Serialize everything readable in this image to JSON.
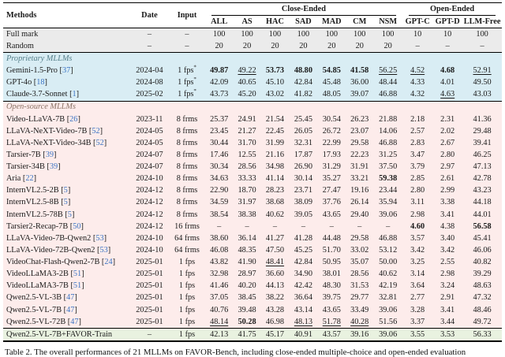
{
  "table": {
    "header": {
      "methods": "Methods",
      "date": "Date",
      "input": "Input",
      "close_group": "Close-Ended",
      "open_group": "Open-Ended",
      "close_cols": [
        "ALL",
        "AS",
        "HAC",
        "SAD",
        "MAD",
        "CM",
        "NSM"
      ],
      "open_cols": [
        "GPT-C",
        "GPT-D",
        "LLM-Free"
      ]
    },
    "emphasis_legend": {
      "b_prefix": "bold (best)",
      "u_prefix": "underline (second best)"
    },
    "groups": [
      {
        "kind": "plain",
        "label": null,
        "rows": [
          {
            "method": "Full mark",
            "cite": null,
            "date": "–",
            "input": "–",
            "values": [
              "100",
              "100",
              "100",
              "100",
              "100",
              "100",
              "100",
              "10",
              "10",
              "100"
            ]
          },
          {
            "method": "Random",
            "cite": null,
            "date": "–",
            "input": "–",
            "values": [
              "20",
              "20",
              "20",
              "20",
              "20",
              "20",
              "20",
              "–",
              "–",
              "–"
            ]
          }
        ]
      },
      {
        "kind": "proprietary",
        "label": "Proprietary MLLMs",
        "rows": [
          {
            "method": "Gemini-1.5-Pro",
            "cite": "37",
            "date": "2024-04",
            "input": "1 fps*",
            "values": [
              "b49.87",
              "u49.22",
              "b53.73",
              "b48.80",
              "b54.85",
              "b41.58",
              "u56.25",
              "u4.52",
              "b4.68",
              "u52.91"
            ]
          },
          {
            "method": "GPT-4o",
            "cite": "18",
            "date": "2024-08",
            "input": "1 fps*",
            "values": [
              "42.09",
              "40.65",
              "45.10",
              "42.84",
              "45.48",
              "36.00",
              "48.44",
              "4.33",
              "4.01",
              "49.50"
            ]
          },
          {
            "method": "Claude-3.7-Sonnet",
            "cite": "1",
            "date": "2025-02",
            "input": "1 fps*",
            "values": [
              "43.73",
              "45.20",
              "43.02",
              "41.82",
              "48.05",
              "39.07",
              "46.88",
              "4.32",
              "u4.63",
              "43.03"
            ]
          }
        ]
      },
      {
        "kind": "open",
        "label": "Open-source MLLMs",
        "rows": [
          {
            "method": "Video-LLaVA-7B",
            "cite": "26",
            "date": "2023-11",
            "input": "8 frms",
            "values": [
              "25.37",
              "24.91",
              "21.54",
              "25.45",
              "30.54",
              "26.23",
              "21.88",
              "2.18",
              "2.31",
              "41.36"
            ]
          },
          {
            "method": "LLaVA-NeXT-Video-7B",
            "cite": "52",
            "date": "2024-05",
            "input": "8 frms",
            "values": [
              "23.45",
              "21.27",
              "22.45",
              "26.05",
              "26.72",
              "23.07",
              "14.06",
              "2.57",
              "2.02",
              "29.48"
            ]
          },
          {
            "method": "LLaVA-NeXT-Video-34B",
            "cite": "52",
            "date": "2024-05",
            "input": "8 frms",
            "values": [
              "30.44",
              "31.70",
              "31.99",
              "32.31",
              "22.99",
              "29.58",
              "46.88",
              "2.83",
              "2.67",
              "39.41"
            ]
          },
          {
            "method": "Tarsier-7B",
            "cite": "39",
            "date": "2024-07",
            "input": "8 frms",
            "values": [
              "17.46",
              "12.55",
              "21.16",
              "17.87",
              "17.93",
              "22.23",
              "31.25",
              "3.47",
              "2.80",
              "46.25"
            ]
          },
          {
            "method": "Tarsier-34B",
            "cite": "39",
            "date": "2024-07",
            "input": "8 frms",
            "values": [
              "30.34",
              "28.56",
              "34.98",
              "26.90",
              "31.29",
              "31.91",
              "37.50",
              "3.79",
              "2.97",
              "47.13"
            ]
          },
          {
            "method": "Aria",
            "cite": "22",
            "date": "2024-10",
            "input": "8 frms",
            "values": [
              "34.63",
              "33.33",
              "41.14",
              "30.14",
              "35.27",
              "33.21",
              "b59.38",
              "2.85",
              "2.61",
              "42.78"
            ]
          },
          {
            "method": "InternVL2.5-2B",
            "cite": "5",
            "date": "2024-12",
            "input": "8 frms",
            "values": [
              "22.90",
              "18.70",
              "28.23",
              "23.71",
              "27.47",
              "19.16",
              "23.44",
              "2.80",
              "2.99",
              "43.23"
            ]
          },
          {
            "method": "InternVL2.5-8B",
            "cite": "5",
            "date": "2024-12",
            "input": "8 frms",
            "values": [
              "34.59",
              "31.97",
              "38.68",
              "38.09",
              "37.76",
              "26.14",
              "35.94",
              "3.11",
              "3.38",
              "44.18"
            ]
          },
          {
            "method": "InternVL2.5-78B",
            "cite": "5",
            "date": "2024-12",
            "input": "8 frms",
            "values": [
              "38.54",
              "38.38",
              "40.62",
              "39.05",
              "43.65",
              "29.40",
              "39.06",
              "2.98",
              "3.41",
              "44.01"
            ]
          },
          {
            "method": "Tarsier2-Recap-7B",
            "cite": "50",
            "date": "2024-12",
            "input": "16 frms",
            "values": [
              "–",
              "–",
              "–",
              "–",
              "–",
              "–",
              "–",
              "b4.60",
              "4.38",
              "b56.58"
            ]
          },
          {
            "method": "LLaVA-Video-7B-Qwen2",
            "cite": "53",
            "date": "2024-10",
            "input": "64 frms",
            "values": [
              "38.60",
              "36.14",
              "41.27",
              "41.28",
              "44.48",
              "29.58",
              "46.88",
              "3.57",
              "3.40",
              "45.41"
            ]
          },
          {
            "method": "LLaVA-Video-72B-Qwen2",
            "cite": "53",
            "date": "2024-10",
            "input": "64 frms",
            "values": [
              "46.08",
              "48.35",
              "47.50",
              "45.25",
              "51.70",
              "33.02",
              "53.12",
              "3.42",
              "3.42",
              "46.06"
            ]
          },
          {
            "method": "VideoChat-Flash-Qwen2-7B",
            "cite": "24",
            "date": "2025-01",
            "input": "1 fps",
            "values": [
              "43.82",
              "41.90",
              "u48.41",
              "42.84",
              "50.95",
              "35.07",
              "50.00",
              "3.25",
              "2.55",
              "40.82"
            ]
          },
          {
            "method": "VideoLLaMA3-2B",
            "cite": "51",
            "date": "2025-01",
            "input": "1 fps",
            "values": [
              "32.98",
              "28.97",
              "36.60",
              "34.90",
              "38.01",
              "28.56",
              "40.62",
              "3.14",
              "2.98",
              "39.29"
            ]
          },
          {
            "method": "VideoLLaMA3-7B",
            "cite": "51",
            "date": "2025-01",
            "input": "1 fps",
            "values": [
              "41.46",
              "40.20",
              "44.13",
              "42.42",
              "48.30",
              "31.53",
              "42.19",
              "3.64",
              "3.24",
              "48.63"
            ]
          },
          {
            "method": "Qwen2.5-VL-3B",
            "cite": "47",
            "date": "2025-01",
            "input": "1 fps",
            "values": [
              "37.05",
              "38.45",
              "38.22",
              "36.64",
              "39.75",
              "29.77",
              "32.81",
              "2.77",
              "2.91",
              "47.32"
            ]
          },
          {
            "method": "Qwen2.5-VL-7B",
            "cite": "47",
            "date": "2025-01",
            "input": "1 fps",
            "values": [
              "40.76",
              "39.48",
              "43.28",
              "43.14",
              "43.65",
              "33.49",
              "39.06",
              "3.28",
              "3.41",
              "48.46"
            ]
          },
          {
            "method": "Qwen2.5-VL-72B",
            "cite": "47",
            "date": "2025-01",
            "input": "1 fps",
            "values": [
              "u48.14",
              "b50.28",
              "46.98",
              "u48.13",
              "u51.78",
              "u40.28",
              "51.56",
              "3.37",
              "3.44",
              "49.72"
            ]
          }
        ]
      },
      {
        "kind": "highlight",
        "label": null,
        "rows": [
          {
            "method": "Qwen2.5-VL-7B+FAVOR-Train",
            "cite": null,
            "date": "–",
            "input": "1 fps",
            "values": [
              "42.13",
              "41.75",
              "45.17",
              "40.91",
              "43.57",
              "39.16",
              "39.06",
              "3.55",
              "3.53",
              "56.33"
            ]
          }
        ]
      }
    ]
  },
  "caption": "Table 2. The overall performances of 21 MLLMs on FAVOR-Bench, including close-ended multiple-choice and open-ended evaluation"
}
